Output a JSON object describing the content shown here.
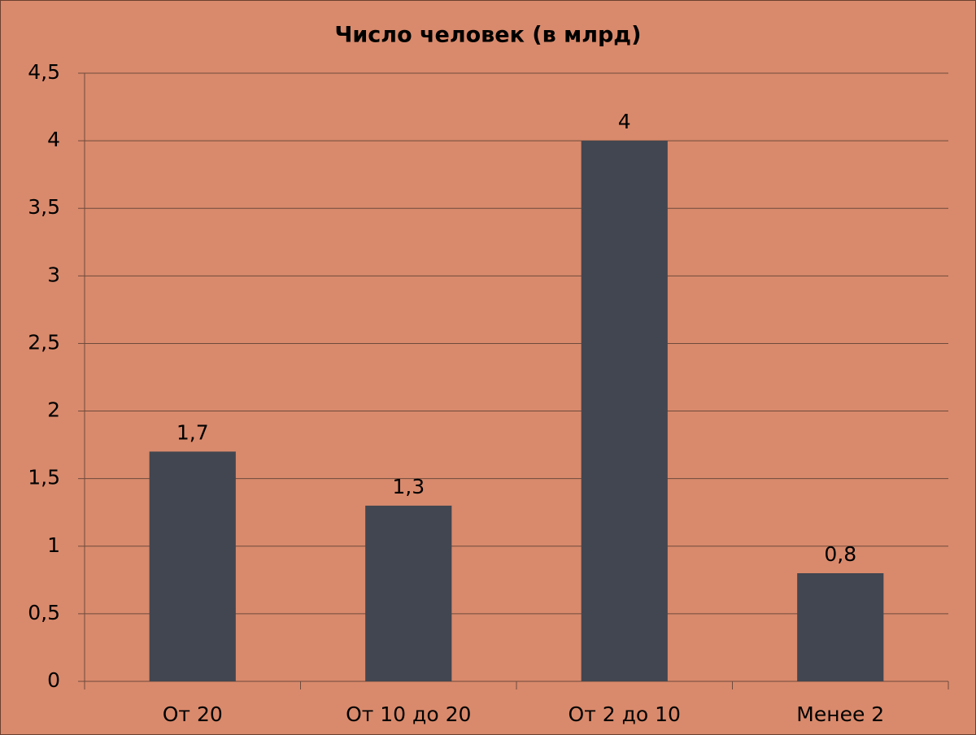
{
  "chart_data": {
    "type": "bar",
    "title": "Число человек (в млрд)",
    "categories": [
      "От 20",
      "От 10 до 20",
      "От 2 до 10",
      "Менее 2"
    ],
    "values": [
      1.7,
      1.3,
      4,
      0.8
    ],
    "value_labels": [
      "1,7",
      "1,3",
      "4",
      "0,8"
    ],
    "color": "#424650",
    "ylim": [
      0,
      4.5
    ],
    "yticks": [
      0,
      {
        "value": 0.5,
        "label": "0,5"
      },
      1,
      {
        "value": 1.5,
        "label": "1,5"
      },
      2,
      {
        "value": 2.5,
        "label": "2,5"
      },
      3,
      {
        "value": 3.5,
        "label": "3,5"
      },
      4,
      {
        "value": 4.5,
        "label": "4,5"
      }
    ],
    "grid": true
  }
}
